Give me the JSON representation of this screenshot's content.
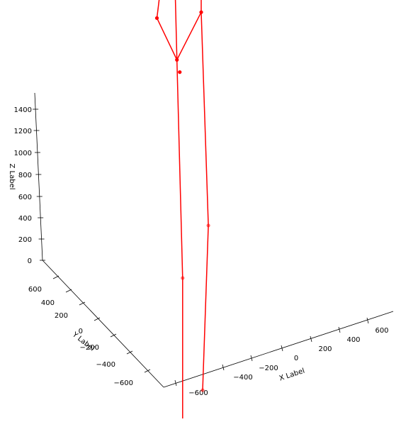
{
  "chart_data": {
    "type": "scatter",
    "subtype": "3d-skeleton",
    "title": "",
    "xlabel": "X Label",
    "ylabel": "Y Label",
    "zlabel": "Z Label",
    "x_ticks": [
      "−600",
      "−400",
      "−200",
      "0",
      "200",
      "400",
      "600"
    ],
    "y_ticks": [
      "−600",
      "−400",
      "−200",
      "0",
      "200",
      "400",
      "600"
    ],
    "z_ticks": [
      "0",
      "200",
      "400",
      "600",
      "800",
      "1000",
      "1200",
      "1400"
    ],
    "grid": false,
    "series": [
      {
        "color": "#ff0000",
        "joints": [
          {
            "id": "head",
            "x": 0,
            "y": 0,
            "z": 1300
          },
          {
            "id": "neck",
            "x": 0,
            "y": 0,
            "z": 1220
          },
          {
            "id": "right_shoulder",
            "x": -200,
            "y": 0,
            "z": 1070
          },
          {
            "id": "right_hand",
            "x": -310,
            "y": 0,
            "z": 790
          },
          {
            "id": "right_hip",
            "x": -170,
            "y": 0,
            "z": 680
          },
          {
            "id": "pelvis_marker",
            "x": -150,
            "y": 0,
            "z": 650
          },
          {
            "id": "left_hip",
            "x": 0,
            "y": 0,
            "z": 770
          },
          {
            "id": "left_elbow",
            "x": 60,
            "y": 0,
            "z": 1060
          },
          {
            "id": "left_hand",
            "x": 110,
            "y": 0,
            "z": 830
          },
          {
            "id": "right_knee",
            "x": -130,
            "y": 0,
            "z": 180
          },
          {
            "id": "right_foot",
            "x": -130,
            "y": 0,
            "z": -180
          },
          {
            "id": "left_knee",
            "x": 50,
            "y": 0,
            "z": 280
          },
          {
            "id": "left_foot",
            "x": 10,
            "y": 0,
            "z": -90
          }
        ],
        "bones": [
          [
            "head",
            "neck"
          ],
          [
            "head",
            "right_shoulder"
          ],
          [
            "neck",
            "right_shoulder"
          ],
          [
            "right_shoulder",
            "right_hand"
          ],
          [
            "right_hand",
            "right_hip"
          ],
          [
            "right_shoulder",
            "right_hip"
          ],
          [
            "right_hip",
            "left_hip"
          ],
          [
            "neck",
            "left_hip"
          ],
          [
            "neck",
            "left_elbow"
          ],
          [
            "left_elbow",
            "left_hand"
          ],
          [
            "right_hip",
            "right_knee"
          ],
          [
            "right_knee",
            "right_foot"
          ],
          [
            "left_hip",
            "left_knee"
          ],
          [
            "left_knee",
            "left_foot"
          ]
        ]
      }
    ]
  }
}
